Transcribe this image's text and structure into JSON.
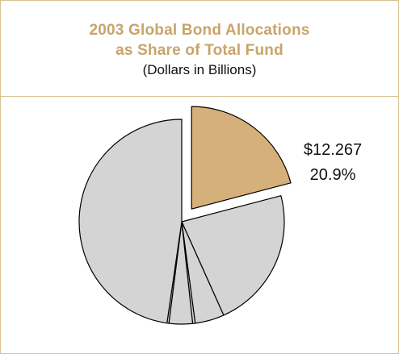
{
  "header": {
    "title_line1": "2003 Global Bond Allocations",
    "title_line2": "as Share of Total Fund",
    "subtitle": "(Dollars in Billions)"
  },
  "colors": {
    "border": "#d9bf93",
    "title": "#c8a46b",
    "highlight_slice": "#d6b07b",
    "slice": "#d4d4d4",
    "outline": "#000000"
  },
  "chart_data": {
    "type": "pie",
    "title": "2003 Global Bond Allocations as Share of Total Fund",
    "subtitle": "(Dollars in Billions)",
    "exploded_index": 0,
    "slices": [
      {
        "value_label": "$12.267",
        "percent_label": "20.9%",
        "percent": 20.9,
        "highlight": true
      },
      {
        "percent": 22.4,
        "highlight": false
      },
      {
        "percent": 4.6,
        "highlight": false
      },
      {
        "percent": 0.4,
        "highlight": false
      },
      {
        "percent": 3.7,
        "highlight": false
      },
      {
        "percent": 0.3,
        "highlight": false
      },
      {
        "percent": 47.7,
        "highlight": false
      }
    ]
  }
}
